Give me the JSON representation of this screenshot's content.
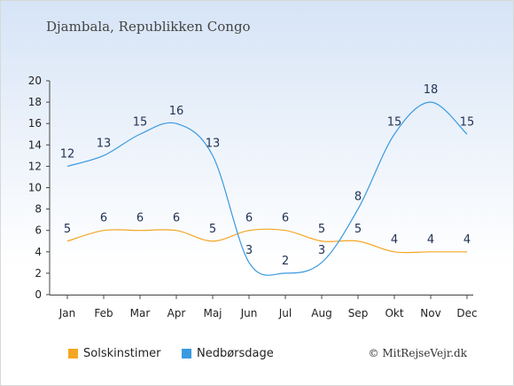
{
  "header": {
    "title": "Djambala, Republikken Congo"
  },
  "chart_data": {
    "type": "line",
    "categories": [
      "Jan",
      "Feb",
      "Mar",
      "Apr",
      "Maj",
      "Jun",
      "Jul",
      "Aug",
      "Sep",
      "Okt",
      "Nov",
      "Dec"
    ],
    "series": [
      {
        "name": "Solskinstimer",
        "color": "#f5a623",
        "values": [
          5,
          6,
          6,
          6,
          5,
          6,
          6,
          5,
          5,
          4,
          4,
          4
        ]
      },
      {
        "name": "Nedbørsdage",
        "color": "#3a9ae0",
        "values": [
          12,
          13,
          15,
          16,
          13,
          3,
          2,
          3,
          8,
          15,
          18,
          15
        ]
      }
    ],
    "ylim": [
      0,
      20
    ],
    "yticks": [
      "0",
      "2",
      "4",
      "6",
      "8",
      "10",
      "12",
      "14",
      "16",
      "18",
      "20"
    ],
    "legend_position": "bottom-left"
  },
  "legend": {
    "items": [
      "Solskinstimer",
      "Nedbørsdage"
    ],
    "colors": [
      "#f5a623",
      "#3a9ae0"
    ]
  },
  "credit": "© MitRejseVejr.dk"
}
